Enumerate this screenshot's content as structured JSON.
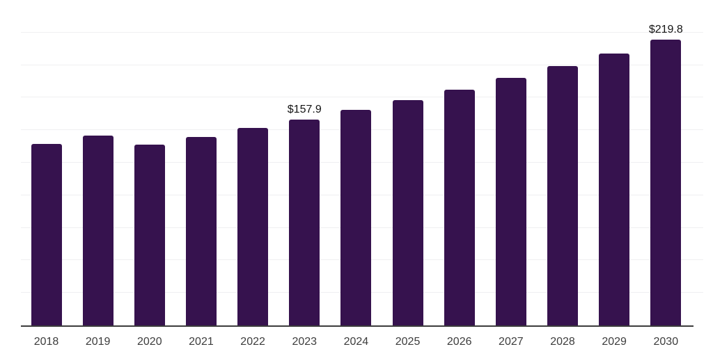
{
  "chart_data": {
    "type": "bar",
    "title": "",
    "xlabel": "",
    "ylabel": "",
    "categories": [
      "2018",
      "2019",
      "2020",
      "2021",
      "2022",
      "2023",
      "2024",
      "2025",
      "2026",
      "2027",
      "2028",
      "2029",
      "2030"
    ],
    "values": [
      139.5,
      145.8,
      139.0,
      145.0,
      151.7,
      157.9,
      165.5,
      173.3,
      181.2,
      190.0,
      199.0,
      208.9,
      219.8
    ],
    "data_labels": {
      "2023": "$157.9",
      "2030": "$219.8"
    },
    "ylim": [
      0,
      250
    ],
    "grid_step": 25,
    "grid": true,
    "legend_position": "none",
    "y_axis_labels_visible": false
  },
  "colors": {
    "bar": "#36124e",
    "gridline": "#efeff1",
    "axis": "#3c3c3c",
    "x_label": "#3d3d3d",
    "value_label": "#141414",
    "background": "#ffffff"
  }
}
